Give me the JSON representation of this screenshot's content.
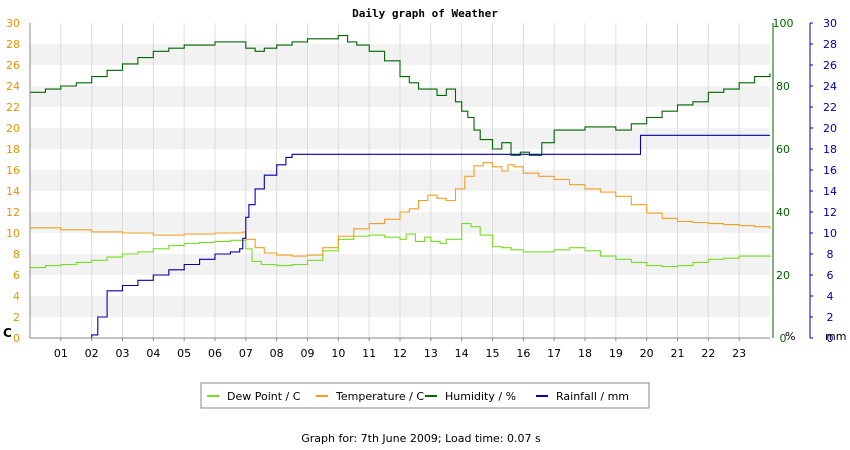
{
  "chart_data": {
    "type": "line",
    "title": "Daily graph of Weather",
    "footer": "Graph for: 7th June 2009; Load time: 0.07 s",
    "x_ticks": [
      "01",
      "02",
      "03",
      "04",
      "05",
      "06",
      "07",
      "08",
      "09",
      "10",
      "11",
      "12",
      "13",
      "14",
      "15",
      "16",
      "17",
      "18",
      "19",
      "20",
      "21",
      "22",
      "23"
    ],
    "xlim": [
      0,
      24
    ],
    "left_axis": {
      "unit_label": "C",
      "ticks": [
        "0",
        "2",
        "4",
        "6",
        "8",
        "10",
        "12",
        "14",
        "16",
        "18",
        "20",
        "22",
        "24",
        "26",
        "28",
        "30"
      ],
      "ylim": [
        0,
        30
      ],
      "color": "#e69500"
    },
    "humidity_axis": {
      "unit_label": "%",
      "ticks": [
        "0",
        "20",
        "40",
        "60",
        "80",
        "100"
      ],
      "ylim": [
        0,
        100
      ],
      "color": "#006400"
    },
    "rain_axis": {
      "unit_label": "mm",
      "ticks": [
        "0",
        "2",
        "4",
        "6",
        "8",
        "10",
        "12",
        "14",
        "16",
        "18",
        "20",
        "22",
        "24",
        "26",
        "28",
        "30"
      ],
      "ylim": [
        0,
        30
      ],
      "color": "#0000aa"
    },
    "legend": {
      "position": "bottom"
    },
    "grid": {
      "bands": true,
      "vertical": true
    },
    "series": [
      {
        "name": "Dew Point / C",
        "color": "#77dd22",
        "axis": "left",
        "x": [
          0,
          0.5,
          1,
          1.5,
          2,
          2.5,
          3,
          3.5,
          4,
          4.5,
          5,
          5.5,
          6,
          6.5,
          6.9,
          7.0,
          7.2,
          7.5,
          8,
          8.5,
          9,
          9.5,
          10,
          10.5,
          11,
          11.5,
          12,
          12.2,
          12.5,
          12.8,
          13,
          13.3,
          13.5,
          14,
          14.3,
          14.6,
          15,
          15.3,
          15.6,
          16,
          16.5,
          17,
          17.5,
          18,
          18.5,
          19,
          19.5,
          20,
          20.5,
          21,
          21.5,
          22,
          22.5,
          23,
          23.5,
          24
        ],
        "y": [
          6.7,
          6.9,
          7.0,
          7.2,
          7.4,
          7.7,
          8.0,
          8.2,
          8.5,
          8.8,
          9.0,
          9.1,
          9.2,
          9.3,
          9.3,
          8.5,
          7.3,
          7.0,
          6.9,
          7.0,
          7.4,
          8.3,
          9.4,
          9.7,
          9.8,
          9.6,
          9.4,
          9.9,
          9.2,
          9.6,
          9.2,
          9.0,
          9.4,
          10.9,
          10.6,
          9.8,
          8.7,
          8.6,
          8.4,
          8.2,
          8.2,
          8.4,
          8.6,
          8.3,
          7.8,
          7.5,
          7.2,
          6.9,
          6.8,
          6.9,
          7.2,
          7.5,
          7.6,
          7.8,
          7.8,
          7.7
        ]
      },
      {
        "name": "Temperature / C",
        "color": "#f0a020",
        "axis": "left",
        "x": [
          0,
          1,
          2,
          3,
          4,
          5,
          6,
          6.9,
          7.0,
          7.3,
          7.6,
          8,
          8.5,
          9,
          9.5,
          10,
          10.5,
          11,
          11.5,
          12,
          12.3,
          12.6,
          12.9,
          13.2,
          13.5,
          13.8,
          14.1,
          14.4,
          14.7,
          15,
          15.3,
          15.5,
          15.7,
          16,
          16.5,
          17,
          17.5,
          18,
          18.5,
          19,
          19.5,
          20,
          20.5,
          21,
          21.5,
          22,
          22.5,
          23,
          23.5,
          24
        ],
        "y": [
          10.5,
          10.3,
          10.1,
          10.0,
          9.8,
          9.9,
          10.0,
          10.1,
          9.4,
          8.6,
          8.1,
          7.9,
          7.8,
          7.9,
          8.6,
          9.7,
          10.4,
          10.9,
          11.3,
          12.0,
          12.3,
          13.1,
          13.6,
          13.3,
          13.1,
          14.2,
          15.4,
          16.4,
          16.7,
          16.3,
          15.9,
          16.5,
          16.3,
          15.7,
          15.4,
          15.1,
          14.6,
          14.2,
          13.9,
          13.5,
          12.7,
          11.9,
          11.4,
          11.1,
          11.0,
          10.9,
          10.8,
          10.7,
          10.6,
          10.4
        ]
      },
      {
        "name": "Humidity / %",
        "color": "#006400",
        "axis": "humidity",
        "x": [
          0,
          0.5,
          1,
          1.5,
          2,
          2.5,
          3,
          3.5,
          4,
          4.5,
          5,
          5.5,
          6,
          6.5,
          6.9,
          7.0,
          7.3,
          7.6,
          8,
          8.5,
          9,
          9.5,
          10,
          10.3,
          10.6,
          11,
          11.5,
          12,
          12.3,
          12.6,
          12.9,
          13.2,
          13.5,
          13.8,
          14,
          14.2,
          14.4,
          14.6,
          15,
          15.3,
          15.6,
          15.9,
          16.2,
          16.6,
          17,
          17.5,
          18,
          18.5,
          19,
          19.5,
          20,
          20.5,
          21,
          21.5,
          22,
          22.5,
          23,
          23.5,
          24
        ],
        "y": [
          78,
          79,
          80,
          81,
          83,
          85,
          87,
          89,
          91,
          92,
          93,
          93,
          94,
          94,
          94,
          92,
          91,
          92,
          93,
          94,
          95,
          95,
          96,
          94,
          93,
          91,
          88,
          83,
          81,
          79,
          79,
          77,
          79,
          75,
          72,
          70,
          66,
          63,
          60,
          62,
          58,
          59,
          58,
          62,
          66,
          66,
          67,
          67,
          66,
          68,
          70,
          72,
          74,
          75,
          78,
          79,
          81,
          83,
          84
        ]
      },
      {
        "name": "Rainfall / mm",
        "color": "#0000aa",
        "axis": "rain",
        "x": [
          0,
          1.5,
          2.0,
          2.2,
          2.5,
          3,
          3.5,
          4,
          4.5,
          5,
          5.5,
          6,
          6.5,
          6.8,
          6.9,
          7.0,
          7.1,
          7.3,
          7.6,
          8,
          8.3,
          8.5,
          9,
          10,
          11,
          12,
          13,
          14,
          15,
          16,
          17,
          18,
          19,
          19.7,
          19.8,
          20,
          21,
          22,
          23,
          24
        ],
        "y": [
          0,
          0,
          0.3,
          2.0,
          4.5,
          5.0,
          5.5,
          6.0,
          6.5,
          7.0,
          7.5,
          8.0,
          8.2,
          8.5,
          9.5,
          11.5,
          12.7,
          14.2,
          15.5,
          16.5,
          17.2,
          17.5,
          17.5,
          17.5,
          17.5,
          17.5,
          17.5,
          17.5,
          17.5,
          17.5,
          17.5,
          17.5,
          17.5,
          17.5,
          19.3,
          19.3,
          19.3,
          19.3,
          19.3,
          19.3
        ]
      }
    ]
  }
}
